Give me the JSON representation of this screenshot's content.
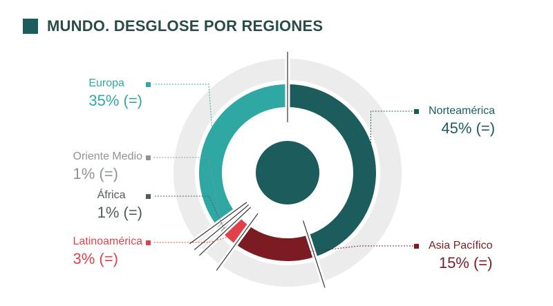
{
  "header": {
    "title": "MUNDO. DESGLOSE POR REGIONES",
    "accent_color": "#1c5c5c"
  },
  "chart_data": {
    "type": "pie",
    "style": "donut",
    "title": "MUNDO. DESGLOSE POR REGIONES",
    "categories": [
      "Norteamérica",
      "Asia Pacífico",
      "Latinoamérica",
      "África",
      "Oriente Medio",
      "Europa"
    ],
    "values": [
      45,
      15,
      3,
      1,
      1,
      35
    ],
    "series": [
      {
        "name": "Norteamérica",
        "value": 45,
        "value_label": "45% (=)",
        "color": "#1c5c5c"
      },
      {
        "name": "Asia Pacífico",
        "value": 15,
        "value_label": "15% (=)",
        "color": "#7a1c22"
      },
      {
        "name": "Latinoamérica",
        "value": 3,
        "value_label": "3% (=)",
        "color": "#e0414b"
      },
      {
        "name": "África",
        "value": 1,
        "value_label": "1% (=)",
        "color": "#4f5c5a"
      },
      {
        "name": "Oriente Medio",
        "value": 1,
        "value_label": "1% (=)",
        "color": "#8c9494"
      },
      {
        "name": "Europa",
        "value": 35,
        "value_label": "35% (=)",
        "color": "#2fa8a4"
      }
    ],
    "legend": "labels-around"
  }
}
